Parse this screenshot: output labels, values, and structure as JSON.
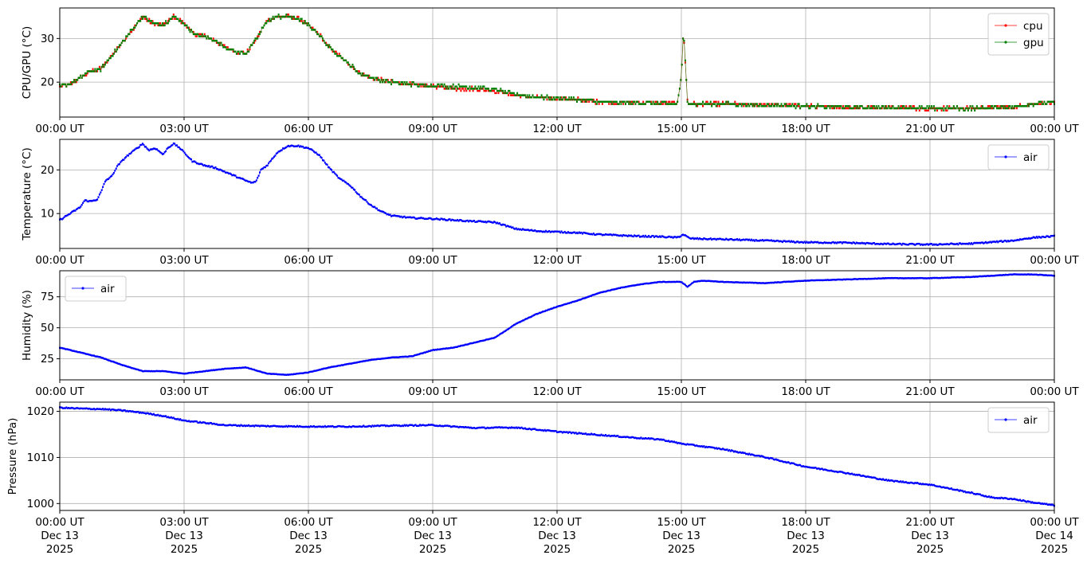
{
  "chart_data": [
    {
      "type": "line",
      "ylabel": "CPU/GPU (°C)",
      "ylim": [
        12,
        37
      ],
      "yticks": [
        20,
        30
      ],
      "grid": true,
      "legend": "top-right",
      "x_ticks": [
        "00:00 UT",
        "03:00 UT",
        "06:00 UT",
        "09:00 UT",
        "12:00 UT",
        "15:00 UT",
        "18:00 UT",
        "21:00 UT",
        "00:00 UT"
      ],
      "x_range_hours": [
        0,
        24
      ],
      "series": [
        {
          "name": "cpu",
          "color": "#ff0000",
          "x": [
            0,
            0.25,
            0.5,
            0.75,
            1.0,
            1.25,
            1.5,
            1.75,
            2.0,
            2.25,
            2.5,
            2.75,
            3.0,
            3.25,
            3.5,
            3.75,
            4.0,
            4.25,
            4.5,
            4.75,
            5.0,
            5.25,
            5.5,
            5.75,
            6.0,
            6.25,
            6.5,
            6.75,
            7.0,
            7.25,
            7.5,
            8.0,
            8.5,
            9.0,
            9.5,
            10.0,
            10.5,
            11.0,
            11.5,
            12.0,
            12.5,
            13.0,
            13.5,
            14.0,
            14.5,
            14.9,
            15.0,
            15.05,
            15.15,
            15.3,
            16.0,
            17.0,
            18.0,
            19.0,
            20.0,
            21.0,
            22.0,
            23.0,
            23.5,
            24.0
          ],
          "values": [
            19,
            19.5,
            21,
            22.5,
            23,
            26,
            29,
            32,
            35,
            33.5,
            33,
            35,
            33.5,
            31,
            30.5,
            29.5,
            28,
            27,
            26.5,
            30,
            34,
            35,
            35,
            34.5,
            33,
            31,
            28,
            26,
            24,
            22,
            21,
            20,
            19.5,
            19,
            18.5,
            18.5,
            18,
            17,
            16.5,
            16.3,
            16,
            15.5,
            15.3,
            15.3,
            15.1,
            15.1,
            21,
            32,
            15.3,
            15,
            15,
            14.8,
            14.5,
            14.2,
            14.2,
            14,
            14,
            14.3,
            15,
            15.3
          ]
        },
        {
          "name": "gpu",
          "color": "#008000",
          "x": [
            0,
            0.25,
            0.5,
            0.75,
            1.0,
            1.25,
            1.5,
            1.75,
            2.0,
            2.25,
            2.5,
            2.75,
            3.0,
            3.25,
            3.5,
            3.75,
            4.0,
            4.25,
            4.5,
            4.75,
            5.0,
            5.25,
            5.5,
            5.75,
            6.0,
            6.25,
            6.5,
            6.75,
            7.0,
            7.25,
            7.5,
            8.0,
            8.5,
            9.0,
            9.5,
            10.0,
            10.5,
            11.0,
            11.5,
            12.0,
            12.5,
            13.0,
            13.5,
            14.0,
            14.5,
            14.9,
            15.0,
            15.05,
            15.15,
            15.3,
            16.0,
            17.0,
            18.0,
            19.0,
            20.0,
            21.0,
            22.0,
            23.0,
            23.5,
            24.0
          ],
          "values": [
            19,
            19.5,
            21,
            22.5,
            23,
            26,
            29,
            32,
            35,
            33.5,
            33,
            35,
            33.5,
            31,
            30.5,
            29.5,
            28,
            27,
            26.5,
            30,
            34,
            35,
            35,
            34.5,
            33,
            31,
            28,
            26,
            24,
            22,
            21,
            20,
            19.5,
            19.2,
            19,
            18.8,
            18.3,
            17.2,
            16.6,
            16.3,
            16,
            15.5,
            15.3,
            15.3,
            15.1,
            15.1,
            21,
            32,
            15.3,
            15,
            15,
            14.8,
            14.5,
            14.2,
            14.2,
            14,
            14,
            14.3,
            15,
            15.3
          ]
        }
      ]
    },
    {
      "type": "line",
      "ylabel": "Temperature (°C)",
      "ylim": [
        2,
        27
      ],
      "yticks": [
        10,
        20
      ],
      "grid": true,
      "legend": "top-right",
      "x_ticks": [
        "00:00 UT",
        "03:00 UT",
        "06:00 UT",
        "09:00 UT",
        "12:00 UT",
        "15:00 UT",
        "18:00 UT",
        "21:00 UT",
        "00:00 UT"
      ],
      "x_range_hours": [
        0,
        24
      ],
      "series": [
        {
          "name": "air",
          "color": "#0000ff",
          "x": [
            0,
            0.25,
            0.5,
            0.6,
            0.75,
            0.9,
            1.0,
            1.1,
            1.25,
            1.4,
            1.6,
            1.8,
            2.0,
            2.15,
            2.3,
            2.5,
            2.6,
            2.75,
            2.9,
            3.0,
            3.2,
            3.35,
            3.5,
            3.75,
            4.0,
            4.25,
            4.5,
            4.65,
            4.75,
            4.85,
            5.0,
            5.25,
            5.5,
            5.75,
            6.0,
            6.25,
            6.5,
            6.75,
            7.0,
            7.25,
            7.5,
            7.75,
            8.0,
            8.5,
            9.0,
            9.5,
            10.0,
            10.5,
            11.0,
            11.5,
            12.0,
            12.5,
            13.0,
            13.5,
            14.0,
            14.5,
            14.9,
            15.05,
            15.2,
            15.5,
            16.0,
            17.0,
            18.0,
            19.0,
            20.0,
            21.0,
            22.0,
            23.0,
            23.5,
            24.0
          ],
          "values": [
            8.5,
            10,
            11.5,
            13,
            12.8,
            13.2,
            15,
            17.5,
            18.5,
            21,
            23,
            24.5,
            26,
            24.5,
            25,
            23.5,
            25,
            26,
            25,
            24,
            22,
            21.5,
            21,
            20.5,
            19.5,
            18.5,
            17.5,
            17,
            17.5,
            20,
            21,
            24,
            25.5,
            25.5,
            25,
            23.5,
            20.5,
            18,
            16.5,
            14,
            12,
            10.5,
            9.5,
            9,
            8.8,
            8.5,
            8.2,
            8,
            6.5,
            6,
            5.8,
            5.6,
            5.2,
            5,
            4.8,
            4.7,
            4.5,
            5.2,
            4.3,
            4.2,
            4.1,
            3.8,
            3.4,
            3.3,
            3,
            2.9,
            3.1,
            3.8,
            4.5,
            4.8
          ]
        }
      ]
    },
    {
      "type": "line",
      "ylabel": "Humidity (%)",
      "ylim": [
        8,
        96
      ],
      "yticks": [
        25,
        50,
        75
      ],
      "grid": true,
      "legend": "top-left",
      "x_ticks": [
        "00:00 UT",
        "03:00 UT",
        "06:00 UT",
        "09:00 UT",
        "12:00 UT",
        "15:00 UT",
        "18:00 UT",
        "21:00 UT",
        "00:00 UT"
      ],
      "x_range_hours": [
        0,
        24
      ],
      "series": [
        {
          "name": "air",
          "color": "#0000ff",
          "x": [
            0,
            0.5,
            1.0,
            1.5,
            2.0,
            2.5,
            3.0,
            3.5,
            4.0,
            4.5,
            5.0,
            5.5,
            6.0,
            6.5,
            7.0,
            7.5,
            8.0,
            8.5,
            9.0,
            9.5,
            10.0,
            10.5,
            11.0,
            11.5,
            12.0,
            12.5,
            13.0,
            13.5,
            14.0,
            14.5,
            15.0,
            15.15,
            15.3,
            15.5,
            16.0,
            17.0,
            18.0,
            19.0,
            20.0,
            21.0,
            22.0,
            23.0,
            23.5,
            24.0
          ],
          "values": [
            34,
            30,
            26,
            20,
            15,
            15,
            13,
            15,
            17,
            18,
            13,
            12,
            14,
            18,
            21,
            24,
            26,
            27,
            32,
            34,
            38,
            42,
            53,
            61,
            67,
            72,
            78,
            82,
            85,
            87,
            87,
            83,
            87,
            88,
            87,
            86,
            88,
            89,
            90,
            90,
            91,
            93,
            93,
            92
          ]
        }
      ]
    },
    {
      "type": "line",
      "ylabel": "Pressure (hPa)",
      "ylim": [
        998.5,
        1022
      ],
      "yticks": [
        1000,
        1010,
        1020
      ],
      "grid": true,
      "legend": "top-right",
      "x_ticks": [
        [
          "00:00 UT",
          "Dec 13",
          "2025"
        ],
        [
          "03:00 UT",
          "Dec 13",
          "2025"
        ],
        [
          "06:00 UT",
          "Dec 13",
          "2025"
        ],
        [
          "09:00 UT",
          "Dec 13",
          "2025"
        ],
        [
          "12:00 UT",
          "Dec 13",
          "2025"
        ],
        [
          "15:00 UT",
          "Dec 13",
          "2025"
        ],
        [
          "18:00 UT",
          "Dec 13",
          "2025"
        ],
        [
          "21:00 UT",
          "Dec 13",
          "2025"
        ],
        [
          "00:00 UT",
          "Dec 14",
          "2025"
        ]
      ],
      "x_range_hours": [
        0,
        24
      ],
      "series": [
        {
          "name": "air",
          "color": "#0000ff",
          "x": [
            0,
            0.5,
            1.0,
            1.5,
            2.0,
            2.5,
            3.0,
            3.5,
            4.0,
            5.0,
            6.0,
            7.0,
            8.0,
            9.0,
            10.0,
            11.0,
            12.0,
            13.0,
            14.0,
            14.5,
            15.0,
            16.0,
            17.0,
            18.0,
            19.0,
            20.0,
            21.0,
            21.5,
            22.0,
            22.5,
            23.0,
            23.5,
            24.0
          ],
          "values": [
            1020.8,
            1020.6,
            1020.5,
            1020.2,
            1019.7,
            1019,
            1018,
            1017.5,
            1017,
            1016.8,
            1016.7,
            1016.7,
            1016.9,
            1017,
            1016.4,
            1016.5,
            1015.6,
            1014.9,
            1014.2,
            1013.9,
            1013,
            1011.8,
            1010.1,
            1008,
            1006.6,
            1005,
            1004.1,
            1003.2,
            1002.3,
            1001.3,
            1001,
            1000.2,
            999.6
          ]
        }
      ]
    }
  ]
}
